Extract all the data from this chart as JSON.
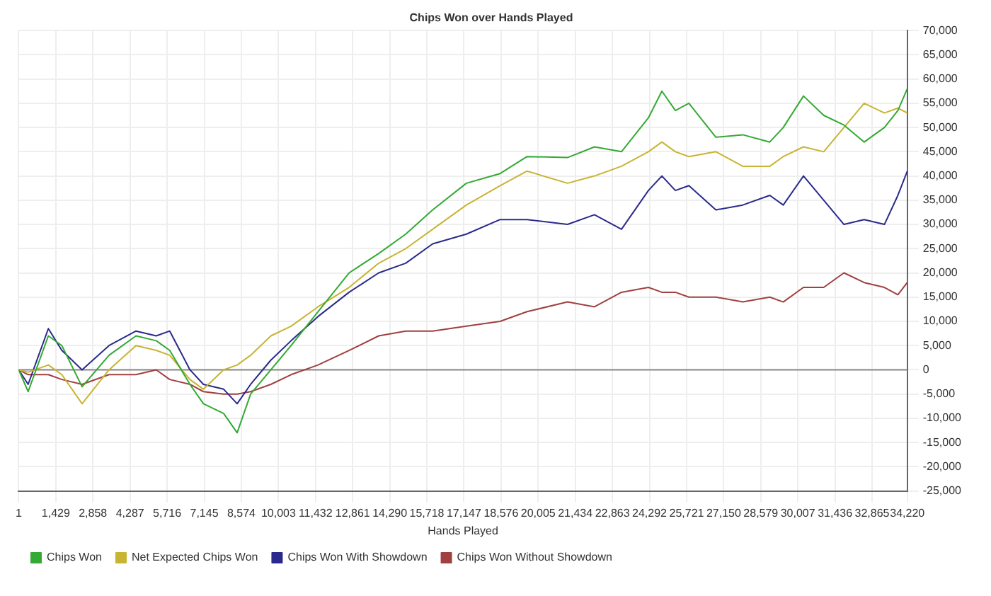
{
  "chart_data": {
    "type": "line",
    "title": "Chips Won over Hands Played",
    "xlabel": "Hands Played",
    "x": [
      1,
      364,
      1142,
      1662,
      2441,
      3479,
      4518,
      5297,
      5816,
      6595,
      7114,
      7893,
      8413,
      8932,
      9711,
      10490,
      11528,
      12723,
      13865,
      14904,
      15942,
      17241,
      18539,
      19578,
      21136,
      22174,
      23213,
      24251,
      24770,
      25290,
      25809,
      26848,
      27886,
      28925,
      29444,
      30223,
      31002,
      31781,
      32560,
      33339,
      33858,
      34220
    ],
    "series": [
      {
        "name": "Chips Won",
        "color": "#33aa33",
        "values": [
          0,
          -4500,
          7000,
          5000,
          -3500,
          3000,
          7000,
          6000,
          4000,
          -3000,
          -7000,
          -9000,
          -13000,
          -5000,
          0,
          5000,
          12000,
          20000,
          24000,
          28000,
          33000,
          38500,
          40500,
          44000,
          43800,
          46000,
          45000,
          52000,
          57500,
          53500,
          55000,
          48000,
          48500,
          47000,
          50000,
          56500,
          52500,
          50500,
          47000,
          50000,
          53500,
          58000
        ]
      },
      {
        "name": "Net Expected Chips Won",
        "color": "#c8b432",
        "values": [
          0,
          -500,
          1000,
          -1000,
          -7000,
          0,
          5000,
          4000,
          3000,
          -2000,
          -4000,
          0,
          1000,
          3000,
          7000,
          9000,
          13000,
          17000,
          22000,
          25000,
          29000,
          34000,
          38000,
          41000,
          38500,
          40000,
          42000,
          45000,
          47000,
          45000,
          44000,
          45000,
          42000,
          42000,
          44000,
          46000,
          45000,
          50000,
          55000,
          53000,
          54000,
          53000
        ]
      },
      {
        "name": "Chips Won With Showdown",
        "color": "#2a2a8c",
        "values": [
          0,
          -3000,
          8500,
          4000,
          0,
          5000,
          8000,
          7000,
          8000,
          0,
          -3000,
          -4000,
          -7000,
          -3000,
          2000,
          6000,
          11000,
          16000,
          20000,
          22000,
          26000,
          28000,
          31000,
          31000,
          30000,
          32000,
          29000,
          37000,
          40000,
          37000,
          38000,
          33000,
          34000,
          36000,
          34000,
          40000,
          35000,
          30000,
          31000,
          30000,
          36000,
          41000
        ]
      },
      {
        "name": "Chips Won Without Showdown",
        "color": "#a04040",
        "values": [
          0,
          -1000,
          -1000,
          -2000,
          -3000,
          -1000,
          -1000,
          0,
          -2000,
          -3000,
          -4500,
          -5000,
          -5000,
          -4500,
          -3000,
          -1000,
          1000,
          4000,
          7000,
          8000,
          8000,
          9000,
          10000,
          12000,
          14000,
          13000,
          16000,
          17000,
          16000,
          16000,
          15000,
          15000,
          14000,
          15000,
          14000,
          17000,
          17000,
          20000,
          18000,
          17000,
          15500,
          18000
        ]
      }
    ],
    "xlim": [
      1,
      34220
    ],
    "xticks": [
      1,
      {
        "value": 1429,
        "label": "1,429"
      },
      {
        "value": 2858,
        "label": "2,858"
      },
      {
        "value": 4287,
        "label": "4,287"
      },
      {
        "value": 5716,
        "label": "5,716"
      },
      {
        "value": 7145,
        "label": "7,145"
      },
      {
        "value": 8574,
        "label": "8,574"
      },
      {
        "value": 10003,
        "label": "10,003"
      },
      {
        "value": 11432,
        "label": "11,432"
      },
      {
        "value": 12861,
        "label": "12,861"
      },
      {
        "value": 14290,
        "label": "14,290"
      },
      {
        "value": 15718,
        "label": "15,718"
      },
      {
        "value": 17147,
        "label": "17,147"
      },
      {
        "value": 18576,
        "label": "18,576"
      },
      {
        "value": 20005,
        "label": "20,005"
      },
      {
        "value": 21434,
        "label": "21,434"
      },
      {
        "value": 22863,
        "label": "22,863"
      },
      {
        "value": 24292,
        "label": "24,292"
      },
      {
        "value": 25721,
        "label": "25,721"
      },
      {
        "value": 27150,
        "label": "27,150"
      },
      {
        "value": 28579,
        "label": "28,579"
      },
      {
        "value": 30007,
        "label": "30,007"
      },
      {
        "value": 31436,
        "label": "31,436"
      },
      {
        "value": 32865,
        "label": "32,865"
      },
      {
        "value": 34220,
        "label": "34,220"
      }
    ],
    "ylim": [
      -25000,
      70000
    ],
    "yticks": [
      {
        "value": -25000,
        "label": "-25,000"
      },
      {
        "value": -20000,
        "label": "-20,000"
      },
      {
        "value": -15000,
        "label": "-15,000"
      },
      {
        "value": -10000,
        "label": "-10,000"
      },
      {
        "value": -5000,
        "label": "-5,000"
      },
      0,
      {
        "value": 5000,
        "label": "5,000"
      },
      {
        "value": 10000,
        "label": "10,000"
      },
      {
        "value": 15000,
        "label": "15,000"
      },
      {
        "value": 20000,
        "label": "20,000"
      },
      {
        "value": 25000,
        "label": "25,000"
      },
      {
        "value": 30000,
        "label": "30,000"
      },
      {
        "value": 35000,
        "label": "35,000"
      },
      {
        "value": 40000,
        "label": "40,000"
      },
      {
        "value": 45000,
        "label": "45,000"
      },
      {
        "value": 50000,
        "label": "50,000"
      },
      {
        "value": 55000,
        "label": "55,000"
      },
      {
        "value": 60000,
        "label": "60,000"
      },
      {
        "value": 65000,
        "label": "65,000"
      },
      {
        "value": 70000,
        "label": "70,000"
      }
    ],
    "ref_lines": [
      {
        "axis": "y",
        "value": 0,
        "color": "#888888"
      }
    ],
    "grid": true,
    "legend": "bottom left",
    "marker": "none",
    "line_style": "solid"
  }
}
